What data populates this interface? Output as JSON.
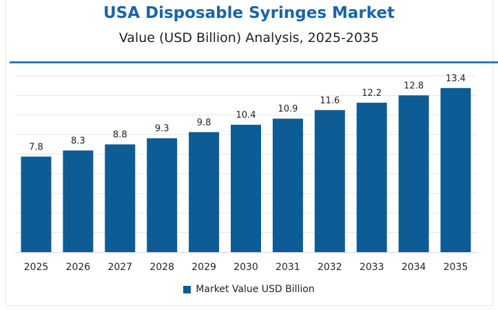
{
  "colors": {
    "bar": "#0e5c95",
    "title": "#1c64a5",
    "grid": "#e3e6ea",
    "rule": "#2b7bb6"
  },
  "chart_data": {
    "type": "bar",
    "title": "USA Disposable Syringes Market",
    "subtitle": "Value (USD Billion) Analysis, 2025-2035",
    "categories": [
      "2025",
      "2026",
      "2027",
      "2028",
      "2029",
      "2030",
      "2031",
      "2032",
      "2033",
      "2034",
      "2035"
    ],
    "series": [
      {
        "name": "Market Value USD Billion",
        "values": [
          7.8,
          8.3,
          8.8,
          9.3,
          9.8,
          10.4,
          10.9,
          11.6,
          12.2,
          12.8,
          13.4
        ]
      }
    ],
    "data_labels": [
      "7.8",
      "8.3",
      "8.8",
      "9.3",
      "9.8",
      "10.4",
      "10.9",
      "11.6",
      "12.2",
      "12.8",
      "13.4"
    ],
    "ylim": [
      0,
      14.4
    ],
    "grid": true,
    "legend": "bottom-center"
  }
}
